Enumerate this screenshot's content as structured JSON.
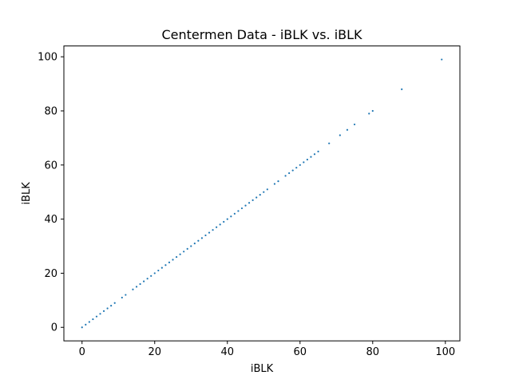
{
  "chart_data": {
    "type": "scatter",
    "title": "Centermen Data - iBLK vs. iBLK",
    "xlabel": "iBLK",
    "ylabel": "iBLK",
    "xlim": [
      -5,
      104
    ],
    "ylim": [
      -5,
      104
    ],
    "x_ticks": [
      0,
      20,
      40,
      60,
      80,
      100
    ],
    "y_ticks": [
      0,
      20,
      40,
      60,
      80,
      100
    ],
    "grid": false,
    "marker_color": "#1f77b4",
    "x": [
      0,
      1,
      2,
      3,
      4,
      5,
      6,
      7,
      8,
      9,
      11,
      12,
      14,
      15,
      16,
      17,
      18,
      19,
      20,
      21,
      22,
      23,
      24,
      25,
      26,
      27,
      28,
      29,
      30,
      31,
      32,
      33,
      34,
      35,
      36,
      37,
      38,
      39,
      40,
      41,
      42,
      43,
      44,
      45,
      46,
      47,
      48,
      49,
      50,
      51,
      53,
      54,
      56,
      57,
      58,
      59,
      60,
      61,
      62,
      63,
      64,
      65,
      68,
      71,
      73,
      75,
      79,
      80,
      88,
      99
    ],
    "y": [
      0,
      1,
      2,
      3,
      4,
      5,
      6,
      7,
      8,
      9,
      11,
      12,
      14,
      15,
      16,
      17,
      18,
      19,
      20,
      21,
      22,
      23,
      24,
      25,
      26,
      27,
      28,
      29,
      30,
      31,
      32,
      33,
      34,
      35,
      36,
      37,
      38,
      39,
      40,
      41,
      42,
      43,
      44,
      45,
      46,
      47,
      48,
      49,
      50,
      51,
      53,
      54,
      56,
      57,
      58,
      59,
      60,
      61,
      62,
      63,
      64,
      65,
      68,
      71,
      73,
      75,
      79,
      80,
      88,
      99
    ]
  }
}
